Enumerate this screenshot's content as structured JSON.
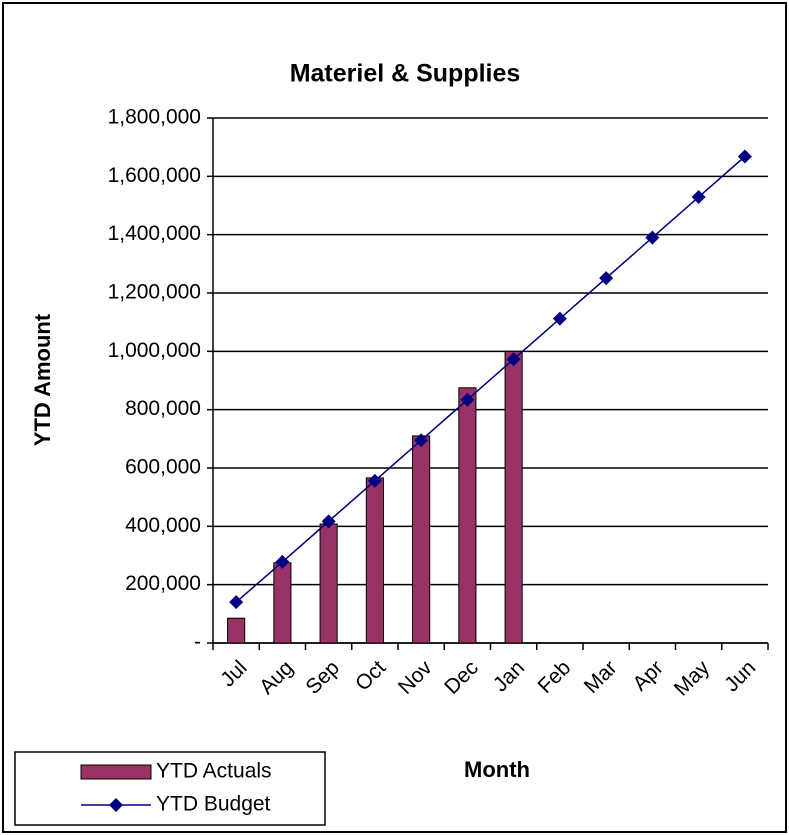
{
  "chart_data": {
    "type": "bar",
    "title": "Materiel & Supplies",
    "x_label": "Month",
    "y_label": "YTD Amount",
    "categories": [
      "Jul",
      "Aug",
      "Sep",
      "Oct",
      "Nov",
      "Dec",
      "Jan",
      "Feb",
      "Mar",
      "Apr",
      "May",
      "Jun"
    ],
    "series": [
      {
        "name": "YTD Actuals",
        "type": "bar",
        "color": "#993366",
        "values": [
          85000,
          275000,
          408000,
          566000,
          710000,
          875000,
          1000000,
          null,
          null,
          null,
          null,
          null
        ]
      },
      {
        "name": "YTD Budget",
        "type": "line",
        "color": "#000080",
        "marker": "diamond",
        "values": [
          140000,
          278000,
          417000,
          556000,
          695000,
          834000,
          973000,
          1112000,
          1251000,
          1390000,
          1529000,
          1668000
        ]
      }
    ],
    "ylim": [
      0,
      1800000
    ],
    "yticks": [
      {
        "value": 0,
        "label": "-"
      },
      {
        "value": 200000,
        "label": "200,000"
      },
      {
        "value": 400000,
        "label": "400,000"
      },
      {
        "value": 600000,
        "label": "600,000"
      },
      {
        "value": 800000,
        "label": "800,000"
      },
      {
        "value": 1000000,
        "label": "1,000,000"
      },
      {
        "value": 1200000,
        "label": "1,200,000"
      },
      {
        "value": 1400000,
        "label": "1,400,000"
      },
      {
        "value": 1600000,
        "label": "1,600,000"
      },
      {
        "value": 1800000,
        "label": "1,800,000"
      }
    ],
    "grid": true,
    "legend": "bottom-left"
  }
}
